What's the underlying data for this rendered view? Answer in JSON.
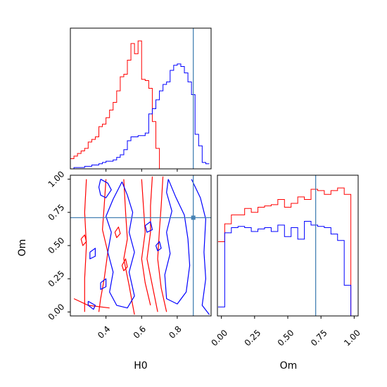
{
  "chart_data": {
    "type": "corner",
    "parameters": [
      "H0",
      "Om"
    ],
    "truth": {
      "H0": 0.89,
      "Om": 0.71
    },
    "truth_color": "#4682b4",
    "series": [
      {
        "color": "#ff0000"
      },
      {
        "color": "#0000ff"
      }
    ],
    "panels": [
      {
        "id": "hist-h0",
        "type": "histogram",
        "xlim": [
          0.2,
          0.99
        ],
        "ylim": [
          0,
          1.1
        ],
        "bin_edges": [
          0.2,
          0.22,
          0.24,
          0.26,
          0.28,
          0.3,
          0.32,
          0.34,
          0.36,
          0.38,
          0.4,
          0.42,
          0.44,
          0.46,
          0.48,
          0.5,
          0.52,
          0.54,
          0.56,
          0.58,
          0.6,
          0.62,
          0.64,
          0.66,
          0.68,
          0.7,
          0.72,
          0.74,
          0.76,
          0.78,
          0.8,
          0.82,
          0.84,
          0.86,
          0.88,
          0.9,
          0.92,
          0.94,
          0.96,
          0.98
        ],
        "series": [
          {
            "color": "#ff0000",
            "values": [
              0.08,
              0.1,
              0.12,
              0.14,
              0.16,
              0.21,
              0.23,
              0.25,
              0.33,
              0.35,
              0.4,
              0.46,
              0.52,
              0.61,
              0.72,
              0.74,
              0.85,
              0.98,
              0.9,
              1.0,
              0.7,
              0.69,
              0.63,
              0.37,
              0.16,
              0.0,
              0.0,
              0.0,
              0.0,
              0.0,
              0.0,
              0.0,
              0.0,
              0.0,
              0.0,
              0.0,
              0.0,
              0.0,
              0.0
            ]
          },
          {
            "color": "#0000ff",
            "values": [
              0.0,
              0.01,
              0.01,
              0.01,
              0.02,
              0.02,
              0.03,
              0.03,
              0.04,
              0.05,
              0.06,
              0.06,
              0.07,
              0.09,
              0.11,
              0.15,
              0.22,
              0.25,
              0.25,
              0.26,
              0.26,
              0.28,
              0.43,
              0.47,
              0.54,
              0.61,
              0.66,
              0.68,
              0.77,
              0.81,
              0.82,
              0.8,
              0.75,
              0.68,
              0.58,
              0.27,
              0.18,
              0.05,
              0.04
            ]
          }
        ]
      },
      {
        "id": "contour-h0-om",
        "type": "contour",
        "xlabel": "H0",
        "ylabel": "Om",
        "xlim": [
          0.2,
          0.99
        ],
        "ylim": [
          -0.03,
          1.03
        ],
        "xticks": [
          0.4,
          0.6,
          0.8
        ],
        "xtick_labels": [
          "0.4",
          "0.6",
          "0.8"
        ],
        "yticks": [
          0.0,
          0.25,
          0.5,
          0.75,
          1.0
        ],
        "ytick_labels": [
          "0.00",
          "0.25",
          "0.50",
          "0.75",
          "1.00"
        ],
        "series": [
          {
            "color": "#ff0000",
            "contours": [
              [
                [
                  0.29,
                  1.0
                ],
                [
                  0.28,
                  0.75
                ],
                [
                  0.29,
                  0.5
                ],
                [
                  0.28,
                  0.25
                ],
                [
                  0.28,
                  0.0
                ]
              ],
              [
                [
                  0.4,
                  1.0
                ],
                [
                  0.39,
                  0.8
                ],
                [
                  0.38,
                  0.62
                ],
                [
                  0.41,
                  0.45
                ],
                [
                  0.39,
                  0.25
                ],
                [
                  0.37,
                  0.1
                ],
                [
                  0.36,
                  0.0
                ]
              ],
              [
                [
                  0.22,
                  0.1
                ],
                [
                  0.3,
                  0.05
                ],
                [
                  0.42,
                  0.03
                ]
              ],
              [
                [
                  0.5,
                  1.0
                ],
                [
                  0.51,
                  0.75
                ],
                [
                  0.52,
                  0.55
                ],
                [
                  0.5,
                  0.4
                ],
                [
                  0.53,
                  0.2
                ],
                [
                  0.55,
                  0.05
                ],
                [
                  0.56,
                  -0.02
                ]
              ],
              [
                [
                  0.6,
                  1.0
                ],
                [
                  0.61,
                  0.8
                ],
                [
                  0.62,
                  0.6
                ],
                [
                  0.6,
                  0.4
                ],
                [
                  0.62,
                  0.22
                ],
                [
                  0.65,
                  0.05
                ]
              ],
              [
                [
                  0.66,
                  1.02
                ],
                [
                  0.65,
                  0.8
                ],
                [
                  0.65,
                  0.6
                ],
                [
                  0.63,
                  0.4
                ],
                [
                  0.66,
                  0.2
                ],
                [
                  0.69,
                  0.0
                ]
              ],
              [
                [
                  0.72,
                  1.02
                ],
                [
                  0.71,
                  0.8
                ],
                [
                  0.7,
                  0.62
                ],
                [
                  0.69,
                  0.4
                ],
                [
                  0.71,
                  0.18
                ],
                [
                  0.74,
                  0.0
                ]
              ],
              [
                [
                  0.26,
                  0.55
                ],
                [
                  0.28,
                  0.58
                ],
                [
                  0.29,
                  0.53
                ],
                [
                  0.27,
                  0.5
                ],
                [
                  0.26,
                  0.55
                ]
              ],
              [
                [
                  0.45,
                  0.6
                ],
                [
                  0.47,
                  0.64
                ],
                [
                  0.48,
                  0.59
                ],
                [
                  0.46,
                  0.56
                ],
                [
                  0.45,
                  0.6
                ]
              ],
              [
                [
                  0.49,
                  0.35
                ],
                [
                  0.51,
                  0.4
                ],
                [
                  0.52,
                  0.34
                ],
                [
                  0.5,
                  0.31
                ],
                [
                  0.49,
                  0.35
                ]
              ]
            ]
          },
          {
            "color": "#0000ff",
            "contours": [
              [
                [
                  0.37,
                  1.0
                ],
                [
                  0.41,
                  0.97
                ],
                [
                  0.43,
                  0.92
                ],
                [
                  0.4,
                  0.86
                ],
                [
                  0.37,
                  0.88
                ],
                [
                  0.36,
                  0.94
                ],
                [
                  0.37,
                  1.0
                ]
              ],
              [
                [
                  0.49,
                  0.98
                ],
                [
                  0.52,
                  0.88
                ],
                [
                  0.55,
                  0.75
                ],
                [
                  0.53,
                  0.6
                ],
                [
                  0.56,
                  0.45
                ],
                [
                  0.53,
                  0.3
                ],
                [
                  0.56,
                  0.12
                ],
                [
                  0.52,
                  0.03
                ],
                [
                  0.46,
                  0.05
                ],
                [
                  0.42,
                  0.15
                ],
                [
                  0.44,
                  0.3
                ],
                [
                  0.41,
                  0.45
                ],
                [
                  0.43,
                  0.6
                ],
                [
                  0.4,
                  0.72
                ],
                [
                  0.44,
                  0.85
                ],
                [
                  0.49,
                  0.98
                ]
              ],
              [
                [
                  0.75,
                  1.0
                ],
                [
                  0.79,
                  0.87
                ],
                [
                  0.84,
                  0.73
                ],
                [
                  0.86,
                  0.55
                ],
                [
                  0.87,
                  0.35
                ],
                [
                  0.85,
                  0.15
                ],
                [
                  0.8,
                  0.06
                ],
                [
                  0.74,
                  0.1
                ],
                [
                  0.73,
                  0.28
                ],
                [
                  0.76,
                  0.44
                ],
                [
                  0.74,
                  0.6
                ],
                [
                  0.77,
                  0.76
                ],
                [
                  0.74,
                  0.9
                ],
                [
                  0.75,
                  1.0
                ]
              ],
              [
                [
                  0.88,
                  1.0
                ],
                [
                  0.93,
                  0.86
                ],
                [
                  0.96,
                  0.7
                ],
                [
                  0.95,
                  0.45
                ],
                [
                  0.96,
                  0.25
                ],
                [
                  0.94,
                  0.05
                ],
                [
                  0.98,
                  -0.02
                ]
              ],
              [
                [
                  0.3,
                  0.08
                ],
                [
                  0.34,
                  0.05
                ],
                [
                  0.33,
                  0.02
                ],
                [
                  0.3,
                  0.05
                ],
                [
                  0.3,
                  0.08
                ]
              ],
              [
                [
                  0.31,
                  0.45
                ],
                [
                  0.34,
                  0.48
                ],
                [
                  0.34,
                  0.42
                ],
                [
                  0.31,
                  0.4
                ],
                [
                  0.31,
                  0.45
                ]
              ],
              [
                [
                  0.37,
                  0.22
                ],
                [
                  0.4,
                  0.25
                ],
                [
                  0.4,
                  0.19
                ],
                [
                  0.37,
                  0.17
                ],
                [
                  0.37,
                  0.22
                ]
              ],
              [
                [
                  0.62,
                  0.65
                ],
                [
                  0.65,
                  0.68
                ],
                [
                  0.66,
                  0.62
                ],
                [
                  0.63,
                  0.6
                ],
                [
                  0.62,
                  0.65
                ]
              ],
              [
                [
                  0.68,
                  0.5
                ],
                [
                  0.7,
                  0.53
                ],
                [
                  0.71,
                  0.48
                ],
                [
                  0.69,
                  0.46
                ],
                [
                  0.68,
                  0.5
                ]
              ]
            ]
          }
        ]
      },
      {
        "id": "hist-om",
        "type": "histogram",
        "xlabel": "Om",
        "xlim": [
          -0.03,
          1.03
        ],
        "ylim": [
          0,
          1.1
        ],
        "xticks": [
          0.0,
          0.25,
          0.5,
          0.75,
          1.0
        ],
        "xtick_labels": [
          "0.00",
          "0.25",
          "0.50",
          "0.75",
          "1.00"
        ],
        "bin_edges": [
          -0.025,
          0.025,
          0.075,
          0.125,
          0.175,
          0.225,
          0.275,
          0.325,
          0.375,
          0.425,
          0.475,
          0.525,
          0.575,
          0.625,
          0.675,
          0.725,
          0.775,
          0.825,
          0.875,
          0.925,
          0.975,
          1.025
        ],
        "series": [
          {
            "color": "#ff0000",
            "values": [
              0.58,
              0.72,
              0.79,
              0.79,
              0.84,
              0.81,
              0.85,
              0.86,
              0.87,
              0.91,
              0.85,
              0.88,
              0.93,
              0.91,
              0.99,
              0.98,
              0.95,
              0.98,
              1.0,
              0.95,
              0.0
            ]
          },
          {
            "color": "#0000ff",
            "values": [
              0.07,
              0.65,
              0.69,
              0.7,
              0.69,
              0.66,
              0.68,
              0.69,
              0.66,
              0.71,
              0.62,
              0.69,
              0.6,
              0.74,
              0.71,
              0.7,
              0.69,
              0.64,
              0.59,
              0.24,
              0.0
            ]
          }
        ]
      }
    ]
  }
}
